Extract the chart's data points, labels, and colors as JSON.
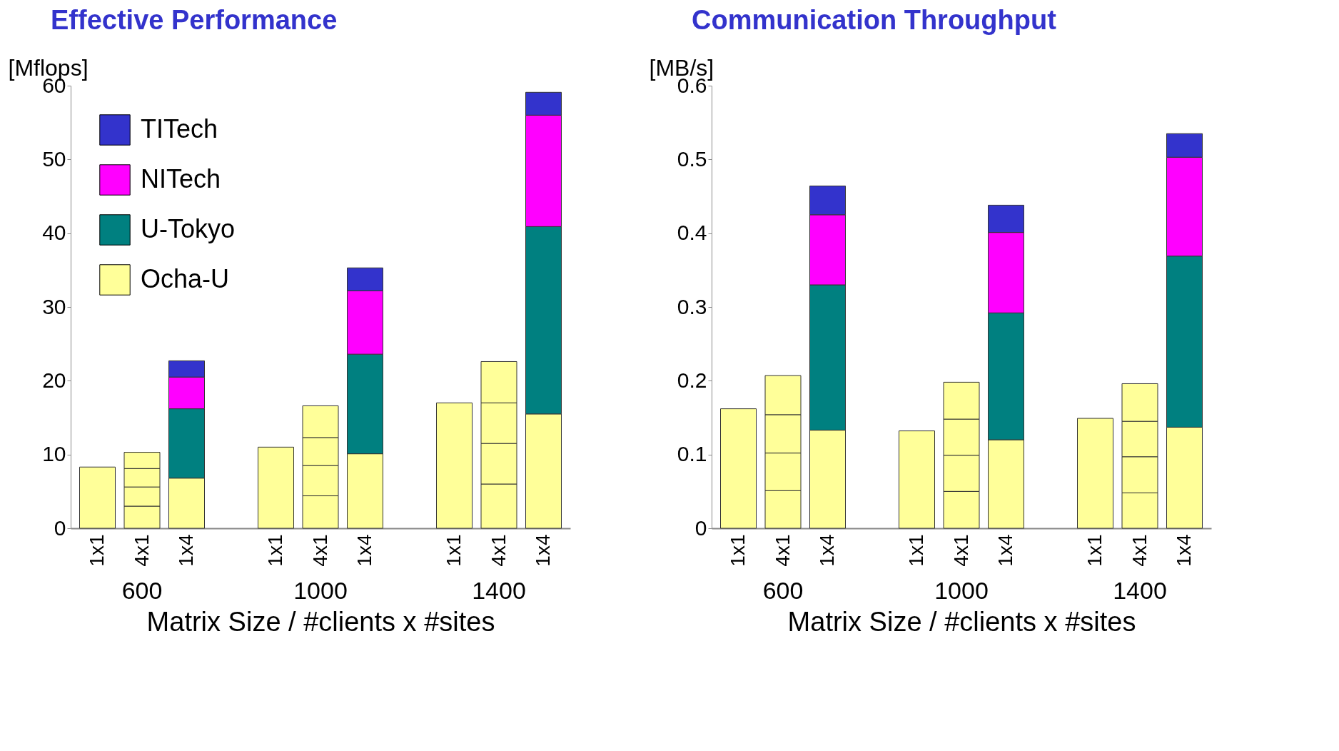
{
  "chart_data": [
    {
      "type": "bar",
      "stacked": true,
      "title": "Effective Performance",
      "ylabel": "[Mflops]",
      "xlabel": "Matrix Size  /  #clients x #sites",
      "annotations": [
        "600",
        "1000",
        "1400"
      ],
      "categories": [
        "1x1",
        "4x1",
        "1x4",
        "1x1",
        "4x1",
        "1x4",
        "1x1",
        "4x1",
        "1x4"
      ],
      "ylim": [
        0,
        60
      ],
      "yticks": [
        0,
        10,
        20,
        30,
        40,
        50,
        60
      ],
      "legend": "top left",
      "series": [
        {
          "name": "Ocha-U",
          "color": "#ffff99",
          "values": [
            8.3,
            3.0,
            6.8,
            11.0,
            4.4,
            10.1,
            17.0,
            6.0,
            15.5
          ]
        },
        {
          "color": "#ffff99",
          "values": [
            null,
            2.6,
            null,
            null,
            4.1,
            null,
            null,
            5.5,
            null
          ]
        },
        {
          "color": "#ffff99",
          "values": [
            null,
            2.5,
            null,
            null,
            3.8,
            null,
            null,
            5.5,
            null
          ]
        },
        {
          "color": "#ffff99",
          "values": [
            null,
            2.2,
            null,
            null,
            4.3,
            null,
            null,
            5.6,
            null
          ]
        },
        {
          "name": "U-Tokyo",
          "color": "#008080",
          "values": [
            null,
            null,
            9.4,
            null,
            null,
            13.5,
            null,
            null,
            25.4
          ]
        },
        {
          "name": "NITech",
          "color": "#ff00ff",
          "values": [
            null,
            null,
            4.3,
            null,
            null,
            8.6,
            null,
            null,
            15.1
          ]
        },
        {
          "name": "TITech",
          "color": "#3333cc",
          "values": [
            null,
            null,
            2.2,
            null,
            null,
            3.1,
            null,
            null,
            3.1
          ]
        }
      ]
    },
    {
      "type": "bar",
      "stacked": true,
      "title": "Communication Throughput",
      "ylabel": "[MB/s]",
      "xlabel": "Matrix Size  /  #clients x #sites",
      "annotations": [
        "600",
        "1000",
        "1400"
      ],
      "categories": [
        "1x1",
        "4x1",
        "1x4",
        "1x1",
        "4x1",
        "1x4",
        "1x1",
        "4x1",
        "1x4"
      ],
      "ylim": [
        0,
        0.6
      ],
      "yticks": [
        0,
        0.1,
        0.2,
        0.3,
        0.4,
        0.5,
        0.6
      ],
      "legend": false,
      "series": [
        {
          "color": "#ffff99",
          "values": [
            0.162,
            0.051,
            0.133,
            0.132,
            0.05,
            0.12,
            0.149,
            0.048,
            0.137
          ]
        },
        {
          "color": "#ffff99",
          "values": [
            null,
            0.051,
            null,
            null,
            0.049,
            null,
            null,
            0.049,
            null
          ]
        },
        {
          "color": "#ffff99",
          "values": [
            null,
            0.052,
            null,
            null,
            0.049,
            null,
            null,
            0.048,
            null
          ]
        },
        {
          "color": "#ffff99",
          "values": [
            null,
            0.053,
            null,
            null,
            0.05,
            null,
            null,
            0.051,
            null
          ]
        },
        {
          "color": "#008080",
          "values": [
            null,
            null,
            0.197,
            null,
            null,
            0.172,
            null,
            null,
            0.232
          ]
        },
        {
          "color": "#ff00ff",
          "values": [
            null,
            null,
            0.095,
            null,
            null,
            0.109,
            null,
            null,
            0.134
          ]
        },
        {
          "color": "#3333cc",
          "values": [
            null,
            null,
            0.039,
            null,
            null,
            0.037,
            null,
            null,
            0.032
          ]
        }
      ]
    }
  ]
}
